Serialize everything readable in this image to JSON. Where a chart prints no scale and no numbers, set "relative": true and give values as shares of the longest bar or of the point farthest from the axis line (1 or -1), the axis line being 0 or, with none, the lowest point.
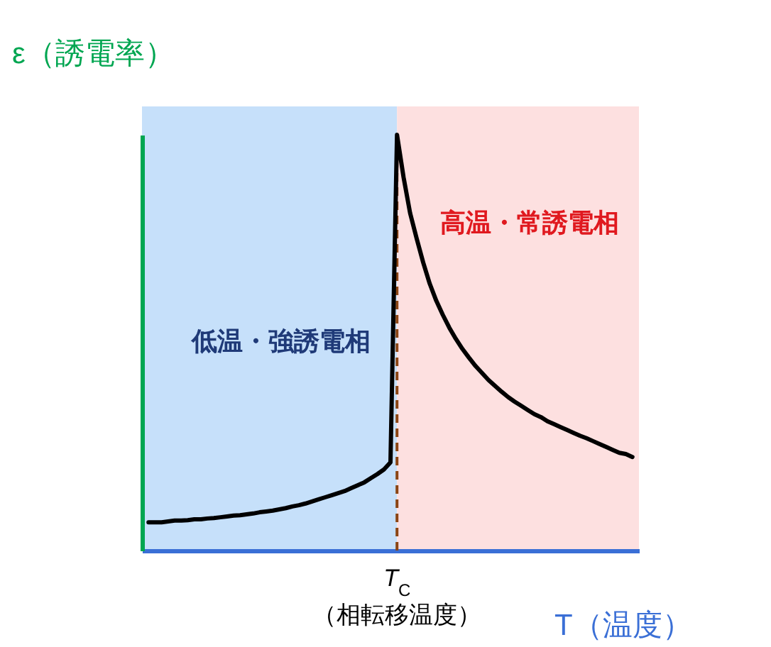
{
  "chart_data": {
    "type": "line",
    "relative": true,
    "xlabel": "T（温度）",
    "ylabel": "ε（誘電率）",
    "categories": [
      null,
      null,
      null,
      null,
      null,
      null,
      null,
      null,
      null,
      null,
      null,
      null,
      null,
      null,
      null,
      null,
      null,
      null,
      null,
      null,
      null,
      null,
      null,
      null,
      null,
      null,
      null,
      null,
      null,
      null,
      null,
      null,
      null,
      null,
      null,
      null,
      null,
      null,
      null,
      null,
      null,
      null,
      null,
      null,
      null,
      null,
      null,
      null,
      null,
      null,
      null,
      null,
      null,
      null,
      null,
      null,
      null,
      null,
      null,
      null,
      null,
      null,
      null,
      null,
      null,
      null,
      null,
      null,
      null,
      null,
      null,
      null,
      null,
      null,
      null
    ],
    "series": [
      {
        "color": "#000000",
        "values": [
          0.068,
          0.068,
          0.068,
          0.07,
          0.072,
          0.072,
          0.073,
          0.075,
          0.075,
          0.077,
          0.078,
          0.08,
          0.082,
          0.084,
          0.085,
          0.087,
          0.089,
          0.092,
          0.094,
          0.096,
          0.099,
          0.102,
          0.106,
          0.109,
          0.113,
          0.118,
          0.123,
          0.128,
          0.133,
          0.138,
          0.143,
          0.15,
          0.157,
          0.164,
          0.174,
          0.184,
          0.195,
          0.212,
          1,
          0.898,
          0.812,
          0.751,
          0.693,
          0.642,
          0.601,
          0.567,
          0.536,
          0.509,
          0.485,
          0.464,
          0.444,
          0.427,
          0.41,
          0.396,
          0.382,
          0.369,
          0.358,
          0.348,
          0.338,
          0.328,
          0.321,
          0.311,
          0.304,
          0.297,
          0.29,
          0.283,
          0.276,
          0.27,
          0.263,
          0.256,
          0.249,
          0.242,
          0.235,
          0.232,
          0.225
        ]
      }
    ],
    "ref_lines": [
      {
        "axis": "x",
        "color": "#8b4513",
        "line_style": "dashed"
      }
    ],
    "annotations": [
      "低温・強誘電相",
      "高温・常誘電相",
      "T$_{C}$",
      "（相転移温度）"
    ],
    "marker": "none",
    "line_style": "solid"
  }
}
